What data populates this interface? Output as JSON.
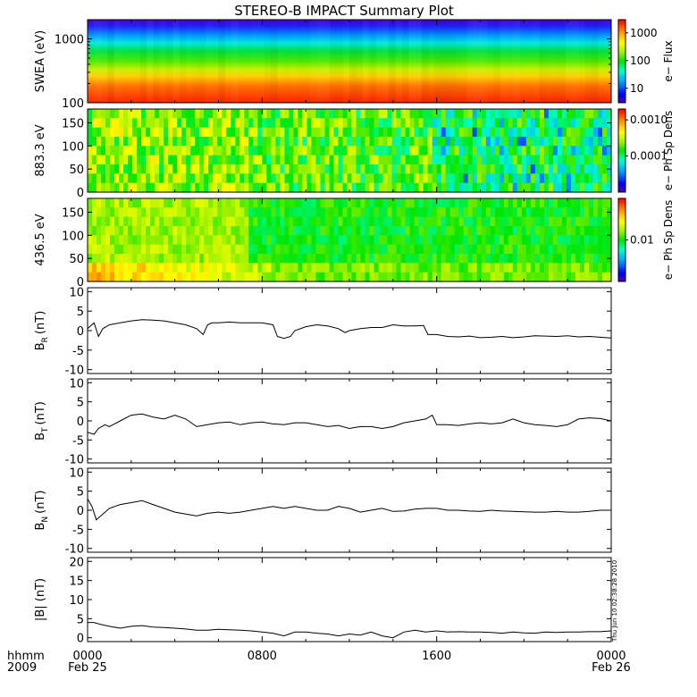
{
  "title": "STEREO-B IMPACT Summary Plot",
  "stamp": "Thu Jun 10 02:38:28 2010",
  "time_axis": {
    "corner_top": "hhmm",
    "corner_bottom": "2009",
    "ticks": [
      {
        "hour": 0,
        "label": "0000",
        "sub": "Feb 25"
      },
      {
        "hour": 8,
        "label": "0800",
        "sub": ""
      },
      {
        "hour": 16,
        "label": "1600",
        "sub": ""
      },
      {
        "hour": 24,
        "label": "0000",
        "sub": "Feb 26"
      }
    ],
    "range_hours": [
      0,
      24
    ]
  },
  "chart_data": [
    {
      "type": "heatmap",
      "ylabel": "SWEA (eV)",
      "yscale": "log",
      "ylim": [
        100,
        2000
      ],
      "yticks": [
        {
          "value": 1000,
          "label": "1000"
        },
        {
          "value": 100,
          "label": "100"
        }
      ],
      "colorbar": {
        "label": "e− Flux",
        "scale": "log",
        "range": [
          3,
          3000
        ],
        "ticks": [
          {
            "value": 1000,
            "label": "1000"
          },
          {
            "value": 100,
            "label": "100"
          },
          {
            "value": 10,
            "label": "10"
          }
        ]
      }
    },
    {
      "type": "heatmap",
      "ylabel": "883.3 eV",
      "yscale": "linear",
      "ylim": [
        0,
        180
      ],
      "yticks": [
        {
          "value": 150,
          "label": "150"
        },
        {
          "value": 100,
          "label": "100"
        },
        {
          "value": 50,
          "label": "50"
        },
        {
          "value": 0,
          "label": "0"
        }
      ],
      "colorbar": {
        "label": "e− Ph Sp Dens",
        "scale": "log",
        "range": [
          1e-05,
          0.002
        ],
        "ticks": [
          {
            "value": 0.001,
            "label": "0.0010"
          },
          {
            "value": 0.0001,
            "label": "0.0001"
          }
        ]
      }
    },
    {
      "type": "heatmap",
      "ylabel": "436.5 eV",
      "yscale": "linear",
      "ylim": [
        0,
        180
      ],
      "yticks": [
        {
          "value": 150,
          "label": "150"
        },
        {
          "value": 100,
          "label": "100"
        },
        {
          "value": 50,
          "label": "50"
        },
        {
          "value": 0,
          "label": "0"
        }
      ],
      "colorbar": {
        "label": "e− Ph Sp Dens",
        "scale": "log",
        "range": [
          0.002,
          0.05
        ],
        "ticks": [
          {
            "value": 0.01,
            "label": "0.01"
          }
        ]
      }
    },
    {
      "type": "line",
      "ylabel": "B",
      "ylabel_sub": "R",
      "ylabel_unit": "(nT)",
      "ylim": [
        -11,
        11
      ],
      "yticks": [
        10,
        5,
        0,
        -5,
        -10
      ],
      "x": [
        0,
        0.3,
        0.5,
        0.7,
        1,
        1.5,
        2,
        2.5,
        3,
        3.5,
        4,
        4.5,
        5,
        5.3,
        5.5,
        5.7,
        6,
        6.5,
        7,
        7.5,
        8,
        8.5,
        8.7,
        9,
        9.3,
        9.5,
        10,
        10.5,
        11,
        11.5,
        11.8,
        12,
        12.5,
        13,
        13.5,
        14,
        14.5,
        15,
        15.4,
        15.6,
        16,
        16.5,
        17,
        17.5,
        18,
        18.5,
        19,
        19.5,
        20,
        20.5,
        21,
        21.5,
        22,
        22.5,
        23,
        23.5,
        24
      ],
      "y": [
        0.5,
        2,
        -1.5,
        0.5,
        1.5,
        2,
        2.5,
        2.8,
        2.7,
        2.5,
        2,
        1.5,
        0.5,
        -1,
        1.5,
        2,
        2,
        2.2,
        2,
        2,
        2,
        1.5,
        -1.5,
        -2,
        -1.5,
        0,
        1,
        1.5,
        1.2,
        0.5,
        -0.5,
        0,
        0.5,
        0.8,
        0.8,
        1.5,
        1.2,
        1.2,
        1.3,
        -1,
        -1,
        -1.5,
        -1.6,
        -1.4,
        -1.8,
        -1.7,
        -1.5,
        -1.8,
        -1.6,
        -1.3,
        -1.4,
        -1.5,
        -1.3,
        -1.6,
        -1.5,
        -1.7,
        -1.9
      ]
    },
    {
      "type": "line",
      "ylabel": "B",
      "ylabel_sub": "T",
      "ylabel_unit": "(nT)",
      "ylim": [
        -11,
        11
      ],
      "yticks": [
        10,
        5,
        0,
        -5,
        -10
      ],
      "x": [
        0,
        0.3,
        0.5,
        0.8,
        1,
        1.5,
        2,
        2.5,
        3,
        3.5,
        4,
        4.5,
        5,
        5.5,
        6,
        6.5,
        7,
        7.5,
        8,
        8.5,
        9,
        9.5,
        10,
        10.5,
        11,
        11.5,
        12,
        12.5,
        13,
        13.5,
        14,
        14.5,
        15,
        15.5,
        15.8,
        16,
        16.5,
        17,
        17.5,
        18,
        18.5,
        19,
        19.5,
        20,
        20.5,
        21,
        21.5,
        22,
        22.5,
        23,
        23.5,
        24
      ],
      "y": [
        -3,
        -3.5,
        -2,
        -1,
        -1.5,
        0,
        1.5,
        1.8,
        1,
        0.5,
        1.5,
        0.5,
        -1.5,
        -1,
        -0.5,
        -0.3,
        -1,
        -0.5,
        -0.3,
        -0.8,
        -1,
        -0.5,
        -0.5,
        -1,
        -1.5,
        -1.2,
        -2,
        -1.5,
        -1.5,
        -2,
        -1.5,
        -0.5,
        0,
        0.5,
        1.5,
        -1,
        -1,
        -1.2,
        -0.8,
        -0.5,
        -0.8,
        -0.5,
        0.5,
        -0.5,
        -1,
        -1.2,
        -1.5,
        -1,
        0.5,
        0.8,
        0.6,
        0
      ]
    },
    {
      "type": "line",
      "ylabel": "B",
      "ylabel_sub": "N",
      "ylabel_unit": "(nT)",
      "ylim": [
        -11,
        11
      ],
      "yticks": [
        10,
        5,
        0,
        -5,
        -10
      ],
      "x": [
        0,
        0.2,
        0.4,
        0.6,
        1,
        1.5,
        2,
        2.5,
        3,
        3.5,
        4,
        4.5,
        5,
        5.5,
        6,
        6.5,
        7,
        7.5,
        8,
        8.5,
        9,
        9.5,
        10,
        10.5,
        11,
        11.5,
        12,
        12.5,
        13,
        13.5,
        14,
        14.5,
        15,
        15.5,
        16,
        16.5,
        17,
        17.5,
        18,
        18.5,
        19,
        19.5,
        20,
        20.5,
        21,
        21.5,
        22,
        22.5,
        23,
        23.5,
        24
      ],
      "y": [
        3,
        1,
        -2.5,
        -1.5,
        0.5,
        1.5,
        2,
        2.5,
        1.5,
        0.5,
        -0.5,
        -1,
        -1.5,
        -0.8,
        -0.5,
        -0.8,
        -0.5,
        0,
        0.5,
        1,
        0.5,
        1,
        0.5,
        0,
        0,
        1,
        0.5,
        -0.5,
        0,
        0.5,
        -0.3,
        -0.2,
        0.3,
        0.5,
        0.5,
        0,
        0,
        -0.2,
        -0.3,
        0,
        -0.2,
        -0.3,
        -0.4,
        -0.5,
        -0.5,
        -0.3,
        -0.5,
        -0.5,
        -0.3,
        0,
        0
      ]
    },
    {
      "type": "line",
      "ylabel": "|B| (nT)",
      "ylim": [
        -1,
        21
      ],
      "yticks": [
        20,
        15,
        10,
        5,
        0
      ],
      "x": [
        0,
        0.3,
        0.6,
        1,
        1.5,
        2,
        2.5,
        3,
        3.5,
        4,
        4.5,
        5,
        5.5,
        6,
        6.5,
        7,
        7.5,
        8,
        8.5,
        9,
        9.5,
        10,
        10.5,
        11,
        11.5,
        12,
        12.5,
        13,
        13.5,
        14,
        14.5,
        15,
        15.5,
        16,
        16.5,
        17,
        17.5,
        18,
        18.5,
        19,
        19.5,
        20,
        20.5,
        21,
        21.5,
        22,
        22.5,
        23,
        23.5,
        24
      ],
      "y": [
        4,
        4,
        3.5,
        3,
        2.5,
        3,
        3.2,
        2.8,
        2.7,
        2.5,
        2.3,
        2,
        2,
        2.2,
        2.1,
        2,
        1.8,
        1.5,
        1.2,
        0.5,
        1.5,
        1.5,
        1.2,
        1,
        0.5,
        1,
        0.7,
        1.5,
        0.5,
        0,
        1.5,
        2,
        1.5,
        1.8,
        1.5,
        1.6,
        1.5,
        1.5,
        1.4,
        1.2,
        1.5,
        1.3,
        1.2,
        1.5,
        1.4,
        1.5,
        1.5,
        1.6,
        1.6,
        1.8
      ]
    }
  ]
}
